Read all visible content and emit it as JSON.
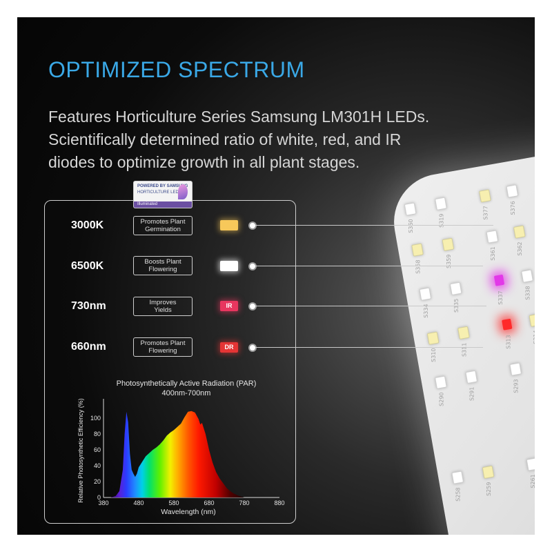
{
  "header": {
    "title": "OPTIMIZED SPECTRUM",
    "description_lines": [
      "Features Horticulture Series Samsung LM301H LEDs.",
      "Scientifically determined ratio of white, red, and IR",
      "diodes to optimize growth in all plant stages."
    ]
  },
  "badge": {
    "line1": "POWERED BY SAMSUNG",
    "line2": "HORTICULTURE LED",
    "line3": "Illuminated"
  },
  "rows": [
    {
      "label": "3000K",
      "box_line1": "Promotes Plant",
      "box_line2": "Germination",
      "swatch": "",
      "color": "#f7c85a"
    },
    {
      "label": "6500K",
      "box_line1": "Boosts Plant",
      "box_line2": "Flowering",
      "swatch": "",
      "color": "#ffffff"
    },
    {
      "label": "730nm",
      "box_line1": "Improves",
      "box_line2": "Yields",
      "swatch": "IR",
      "color": "#e8365f"
    },
    {
      "label": "660nm",
      "box_line1": "Promotes Plant",
      "box_line2": "Flowering",
      "swatch": "DR",
      "color": "#e53535"
    }
  ],
  "board_labels": [
    "S360",
    "S319",
    "S377",
    "S376",
    "S358",
    "S359",
    "S361",
    "S362",
    "S334",
    "S335",
    "S337",
    "S338",
    "S310",
    "S311",
    "S313",
    "S314",
    "S290",
    "S291",
    "S293",
    "S294",
    "S258",
    "S259",
    "S261",
    "S262"
  ],
  "chart_data": {
    "type": "area",
    "title": "Photosynthetically Active Radiation (PAR)",
    "subtitle": "400nm-700nm",
    "xlabel": "Wavelength (nm)",
    "ylabel": "Relative Photosynthetic Efficiency (%)",
    "x_ticks": [
      380,
      480,
      580,
      680,
      780,
      880
    ],
    "y_ticks": [
      0,
      20,
      40,
      60,
      80,
      100
    ],
    "xlim": [
      380,
      880
    ],
    "ylim": [
      0,
      120
    ],
    "series": [
      {
        "x": [
          400,
          415,
          425,
          435,
          440,
          445,
          450,
          455,
          460,
          465,
          470,
          475,
          480,
          490,
          500,
          510,
          520,
          530,
          540,
          550,
          560,
          570,
          580,
          590,
          600,
          610,
          620,
          630,
          640,
          650,
          655,
          660,
          670,
          680,
          690,
          700,
          710,
          720,
          730,
          740,
          750,
          760,
          770,
          780
        ],
        "y": [
          0,
          2,
          8,
          35,
          80,
          108,
          95,
          55,
          35,
          30,
          26,
          30,
          38,
          45,
          52,
          56,
          60,
          63,
          67,
          72,
          78,
          82,
          85,
          89,
          93,
          101,
          108,
          109,
          107,
          99,
          92,
          94,
          80,
          60,
          44,
          32,
          24,
          18,
          12,
          8,
          5,
          3,
          1,
          0
        ]
      }
    ],
    "grid": false,
    "legend": "none"
  }
}
